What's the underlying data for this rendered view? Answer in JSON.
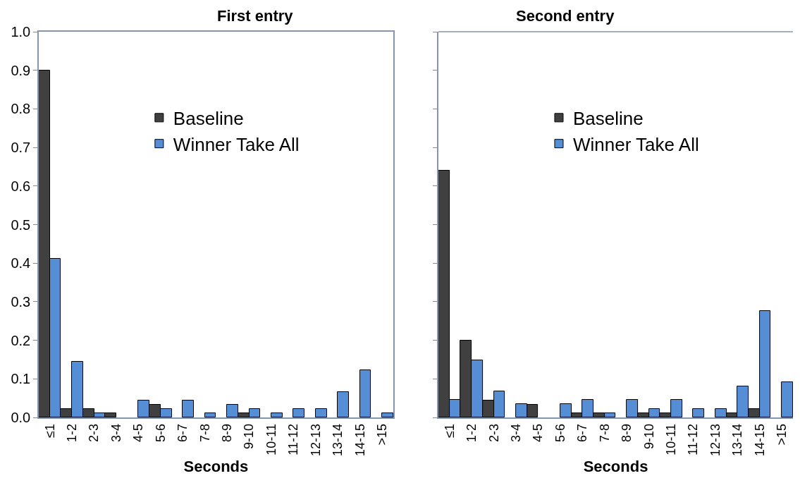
{
  "chart_data": [
    {
      "type": "bar",
      "title": "First entry",
      "xlabel": "Seconds",
      "categories": [
        "≤1",
        "1-2",
        "2-3",
        "3-4",
        "4-5",
        "5-6",
        "6-7",
        "7-8",
        "8-9",
        "9-10",
        "10-11",
        "11-12",
        "12-13",
        "13-14",
        "14-15",
        ">15"
      ],
      "series": [
        {
          "name": "Baseline",
          "color": "#404040",
          "values": [
            0.9,
            0.022,
            0.022,
            0.011,
            0,
            0.033,
            0,
            0,
            0,
            0.011,
            0,
            0,
            0,
            0,
            0,
            0
          ]
        },
        {
          "name": "Winner Take All",
          "color": "#558ed5",
          "values": [
            0.411,
            0.144,
            0.011,
            0,
            0.044,
            0.022,
            0.044,
            0.011,
            0.033,
            0.022,
            0.011,
            0.022,
            0.022,
            0.066,
            0.122,
            0.011
          ]
        }
      ],
      "ylim": [
        0,
        1
      ],
      "yticks": [
        {
          "value": 0,
          "label": "0.0"
        },
        {
          "value": 0.1,
          "label": "0.1"
        },
        {
          "value": 0.2,
          "label": "0.2"
        },
        {
          "value": 0.3,
          "label": "0.3"
        },
        {
          "value": 0.4,
          "label": "0.4"
        },
        {
          "value": 0.5,
          "label": "0.5"
        },
        {
          "value": 0.6,
          "label": "0.6"
        },
        {
          "value": 0.7,
          "label": "0.7"
        },
        {
          "value": 0.8,
          "label": "0.8"
        },
        {
          "value": 0.9,
          "label": "0.9"
        },
        {
          "value": 1,
          "label": "1.0"
        }
      ],
      "grid": false,
      "legend": "top"
    },
    {
      "type": "bar",
      "title": "Second entry",
      "xlabel": "Seconds",
      "categories": [
        "≤1",
        "1-2",
        "2-3",
        "3-4",
        "4-5",
        "5-6",
        "6-7",
        "7-8",
        "8-9",
        "9-10",
        "10-11",
        "11-12",
        "12-13",
        "13-14",
        "14-15",
        ">15"
      ],
      "series": [
        {
          "name": "Baseline",
          "color": "#404040",
          "values": [
            0.64,
            0.2,
            0.044,
            0,
            0.033,
            0,
            0.011,
            0.011,
            0,
            0.011,
            0.011,
            0,
            0,
            0.011,
            0.022,
            0
          ]
        },
        {
          "name": "Winner Take All",
          "color": "#558ed5",
          "values": [
            0.045,
            0.149,
            0.068,
            0.034,
            0,
            0.034,
            0.045,
            0.011,
            0.045,
            0.022,
            0.045,
            0.022,
            0.022,
            0.08,
            0.276,
            0.092
          ]
        }
      ],
      "ylim": [
        0,
        1
      ],
      "tick_labels": "x",
      "grid": false,
      "legend": "top",
      "yticks": [
        {
          "value": 0,
          "label": null
        },
        {
          "value": 0.1,
          "label": null
        },
        {
          "value": 0.2,
          "label": null
        },
        {
          "value": 0.3,
          "label": null
        },
        {
          "value": 0.4,
          "label": null
        },
        {
          "value": 0.5,
          "label": null
        },
        {
          "value": 0.6,
          "label": null
        },
        {
          "value": 0.7,
          "label": null
        },
        {
          "value": 0.8,
          "label": null
        },
        {
          "value": 0.9,
          "label": null
        },
        {
          "value": 1,
          "label": null
        }
      ]
    }
  ]
}
